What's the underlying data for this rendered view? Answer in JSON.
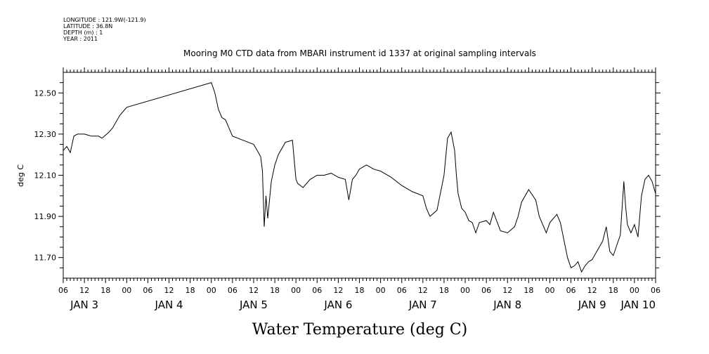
{
  "header": {
    "lines": [
      "LONGITUDE : 121.9W(-121.9)",
      "LATITUDE : 36.8N",
      "DEPTH (m) : 1",
      "YEAR : 2011"
    ]
  },
  "chart_data": {
    "type": "line",
    "title": "Mooring M0 CTD data from MBARI instrument id 1337 at original sampling intervals",
    "xlabel": "Water Temperature (deg C)",
    "ylabel": "deg C",
    "xlim": [
      "2011-01-03T06:00",
      "2011-01-10T06:00"
    ],
    "ylim": [
      11.6,
      12.6
    ],
    "yticks": [
      11.7,
      11.9,
      12.1,
      12.3,
      12.5
    ],
    "ytick_labels": [
      "11.70",
      "11.90",
      "12.10",
      "12.30",
      "12.50"
    ],
    "xtick_hour_labels": [
      "06",
      "12",
      "18",
      "00",
      "06",
      "12",
      "18",
      "00",
      "06",
      "12",
      "18",
      "00",
      "06",
      "12",
      "18",
      "00",
      "06",
      "12",
      "18",
      "00",
      "06",
      "12",
      "18",
      "00",
      "06",
      "12",
      "18",
      "00",
      "06"
    ],
    "day_labels": [
      "JAN  3",
      "JAN  4",
      "JAN  5",
      "JAN  6",
      "JAN  7",
      "JAN  8",
      "JAN  9",
      "JAN 10"
    ],
    "grid": false,
    "series": [
      {
        "color": "#000000",
        "x": [
          "2011-01-03T06:00",
          "2011-01-03T07:00",
          "2011-01-03T08:00",
          "2011-01-03T09:00",
          "2011-01-03T10:00",
          "2011-01-03T12:00",
          "2011-01-03T14:00",
          "2011-01-03T16:00",
          "2011-01-03T17:00",
          "2011-01-03T19:00",
          "2011-01-03T20:00",
          "2011-01-03T22:00",
          "2011-01-04T00:00",
          "2011-01-05T00:00",
          "2011-01-05T01:00",
          "2011-01-05T02:00",
          "2011-01-05T03:00",
          "2011-01-05T04:00",
          "2011-01-05T05:00",
          "2011-01-05T06:00",
          "2011-01-05T09:00",
          "2011-01-05T12:00",
          "2011-01-05T13:00",
          "2011-01-05T14:00",
          "2011-01-05T14:30",
          "2011-01-05T15:00",
          "2011-01-05T15:30",
          "2011-01-05T16:00",
          "2011-01-05T17:00",
          "2011-01-05T18:00",
          "2011-01-05T19:00",
          "2011-01-05T21:00",
          "2011-01-05T23:00",
          "2011-01-06T00:00",
          "2011-01-06T00:30",
          "2011-01-06T02:00",
          "2011-01-06T04:00",
          "2011-01-06T06:00",
          "2011-01-06T08:00",
          "2011-01-06T10:00",
          "2011-01-06T12:00",
          "2011-01-06T14:00",
          "2011-01-06T15:00",
          "2011-01-06T15:30",
          "2011-01-06T16:00",
          "2011-01-06T17:00",
          "2011-01-06T18:00",
          "2011-01-06T20:00",
          "2011-01-06T22:00",
          "2011-01-07T00:00",
          "2011-01-07T03:00",
          "2011-01-07T06:00",
          "2011-01-07T09:00",
          "2011-01-07T12:00",
          "2011-01-07T13:00",
          "2011-01-07T14:00",
          "2011-01-07T16:00",
          "2011-01-07T18:00",
          "2011-01-07T19:00",
          "2011-01-07T20:00",
          "2011-01-07T21:00",
          "2011-01-07T21:30",
          "2011-01-07T22:00",
          "2011-01-07T23:00",
          "2011-01-08T00:00",
          "2011-01-08T01:00",
          "2011-01-08T02:00",
          "2011-01-08T03:00",
          "2011-01-08T04:00",
          "2011-01-08T06:00",
          "2011-01-08T07:00",
          "2011-01-08T08:00",
          "2011-01-08T10:00",
          "2011-01-08T12:00",
          "2011-01-08T14:00",
          "2011-01-08T15:00",
          "2011-01-08T16:00",
          "2011-01-08T18:00",
          "2011-01-08T20:00",
          "2011-01-08T21:00",
          "2011-01-08T22:00",
          "2011-01-08T23:00",
          "2011-01-09T00:00",
          "2011-01-09T02:00",
          "2011-01-09T03:00",
          "2011-01-09T05:00",
          "2011-01-09T06:00",
          "2011-01-09T07:00",
          "2011-01-09T08:00",
          "2011-01-09T09:00",
          "2011-01-09T10:00",
          "2011-01-09T11:00",
          "2011-01-09T12:00",
          "2011-01-09T13:00",
          "2011-01-09T14:00",
          "2011-01-09T15:00",
          "2011-01-09T16:00",
          "2011-01-09T17:00",
          "2011-01-09T18:00",
          "2011-01-09T19:00",
          "2011-01-09T20:00",
          "2011-01-09T21:00",
          "2011-01-09T21:30",
          "2011-01-09T22:00",
          "2011-01-09T23:00",
          "2011-01-10T00:00",
          "2011-01-10T01:00",
          "2011-01-10T02:00",
          "2011-01-10T03:00",
          "2011-01-10T04:00",
          "2011-01-10T05:00",
          "2011-01-10T06:00"
        ],
        "y": [
          12.22,
          12.24,
          12.21,
          12.29,
          12.3,
          12.3,
          12.29,
          12.29,
          12.28,
          12.31,
          12.33,
          12.39,
          12.43,
          12.55,
          12.5,
          12.42,
          12.38,
          12.37,
          12.33,
          12.29,
          12.27,
          12.25,
          12.22,
          12.19,
          12.12,
          11.85,
          12.0,
          11.89,
          12.07,
          12.15,
          12.2,
          12.26,
          12.27,
          12.08,
          12.06,
          12.04,
          12.08,
          12.1,
          12.1,
          12.11,
          12.09,
          12.08,
          11.98,
          12.03,
          12.08,
          12.1,
          12.13,
          12.15,
          12.13,
          12.12,
          12.09,
          12.05,
          12.02,
          12.0,
          11.94,
          11.9,
          11.93,
          12.1,
          12.28,
          12.31,
          12.22,
          12.1,
          12.01,
          11.94,
          11.92,
          11.88,
          11.87,
          11.82,
          11.87,
          11.88,
          11.86,
          11.92,
          11.83,
          11.82,
          11.85,
          11.9,
          11.97,
          12.03,
          11.98,
          11.9,
          11.86,
          11.82,
          11.87,
          11.91,
          11.87,
          11.7,
          11.65,
          11.66,
          11.68,
          11.63,
          11.66,
          11.68,
          11.69,
          11.72,
          11.75,
          11.78,
          11.85,
          11.73,
          11.71,
          11.76,
          11.81,
          12.07,
          11.95,
          11.86,
          11.82,
          11.86,
          11.8,
          12.0,
          12.08,
          12.1,
          12.07,
          12.01
        ]
      }
    ]
  }
}
